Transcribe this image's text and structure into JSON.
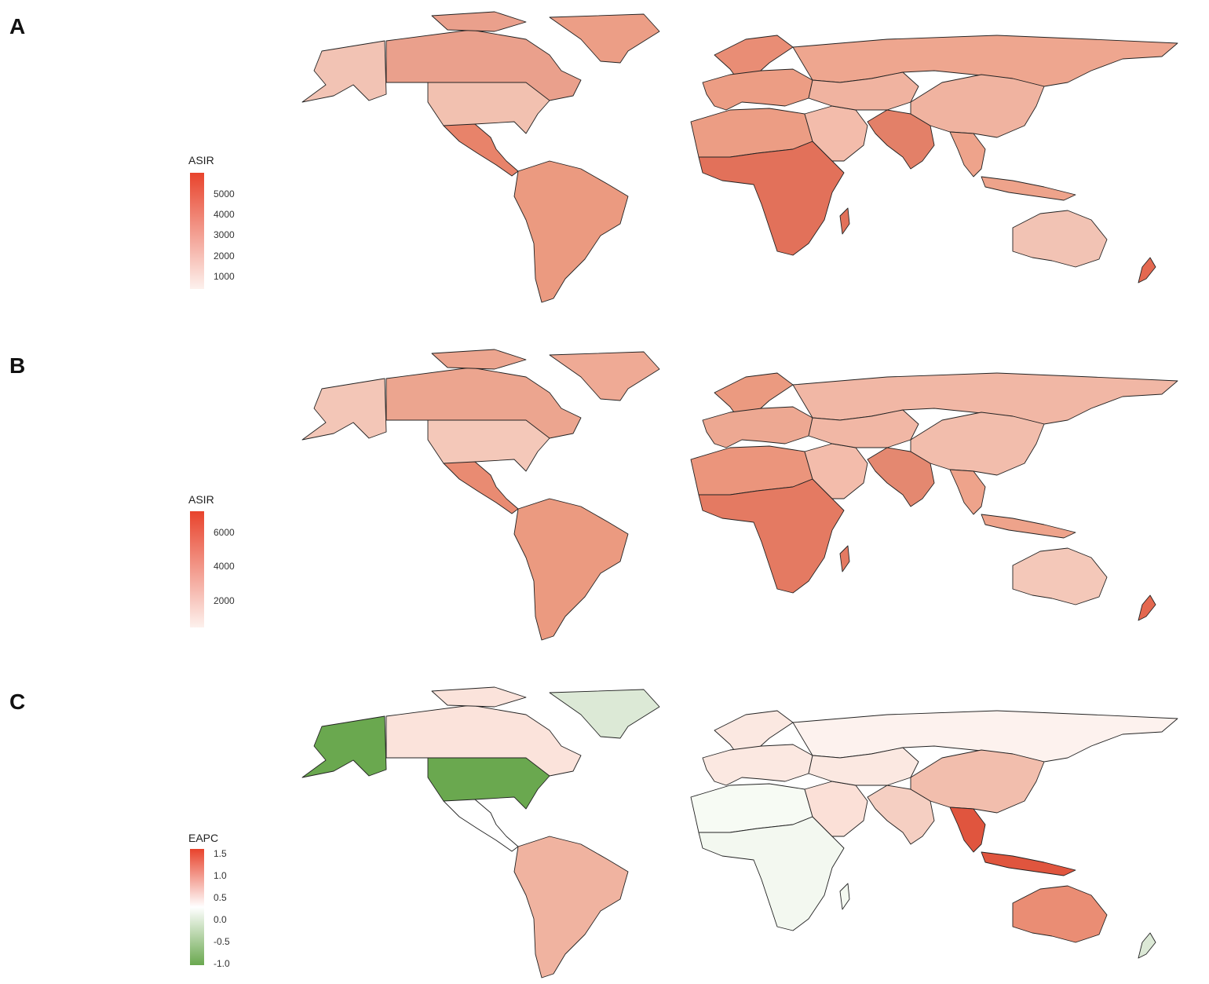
{
  "panels": [
    {
      "letter": "A",
      "legend": {
        "title": "ASIR",
        "ticks": [
          "5000",
          "4000",
          "3000",
          "2000",
          "1000"
        ],
        "gradient": [
          "#e8432c",
          "#fdf1ed"
        ]
      },
      "colors": {
        "north_america_north": "#eaa08c",
        "alaska": "#f2c3b4",
        "greenland": "#ec9e86",
        "usa": "#f2c1b0",
        "mexico_central": "#e8836a",
        "south_america": "#eb9a80",
        "north_africa": "#ec9d84",
        "sub_saharan_africa": "#e2715a",
        "europe": "#ec9d84",
        "russia": "#eea68f",
        "middle_east": "#f3bcab",
        "central_asia": "#f0b3a0",
        "south_asia": "#e38068",
        "china": "#f0b3a0",
        "southeast_asia": "#eea38b",
        "australia": "#f2c3b4",
        "new_zealand": "#e46850",
        "iceland_scandinavia": "#e98d75"
      }
    },
    {
      "letter": "B",
      "legend": {
        "title": "ASIR",
        "ticks": [
          "6000",
          "4000",
          "2000"
        ],
        "gradient": [
          "#e8432c",
          "#fdf1ed"
        ]
      },
      "colors": {
        "north_america_north": "#eca58f",
        "alaska": "#f3c6b7",
        "greenland": "#efaa95",
        "usa": "#f4c8b9",
        "mexico_central": "#e98b72",
        "south_america": "#eb9a80",
        "north_africa": "#eb957c",
        "sub_saharan_africa": "#e47a62",
        "europe": "#eda892",
        "russia": "#f1b7a5",
        "middle_east": "#f3bcab",
        "central_asia": "#f1b7a5",
        "south_asia": "#e48870",
        "china": "#f2bdac",
        "southeast_asia": "#eea38b",
        "australia": "#f4c8b9",
        "new_zealand": "#e46850",
        "iceland_scandinavia": "#eb9a80"
      }
    },
    {
      "letter": "C",
      "legend": {
        "title": "EAPC",
        "ticks": [
          "1.5",
          "1.0",
          "0.5",
          "0.0",
          "-0.5",
          "-1.0"
        ],
        "gradient": [
          "#e8432c",
          "#ffffff",
          "#6aa84f"
        ]
      },
      "colors": {
        "north_america_north": "#fbe3db",
        "alaska": "#6aa84f",
        "greenland": "#dce9d6",
        "usa": "#6aa84f",
        "mexico_central": "#ffffff",
        "south_america": "#f0b3a0",
        "north_africa": "#f7fbf4",
        "sub_saharan_africa": "#f3f8f0",
        "europe": "#fbe8e1",
        "russia": "#fdf2ee",
        "middle_east": "#fbe0d7",
        "central_asia": "#fbe8e1",
        "south_asia": "#f5cfc2",
        "china": "#f2bead",
        "southeast_asia": "#e0553e",
        "australia": "#ea8d74",
        "new_zealand": "#dce9d6",
        "iceland_scandinavia": "#fbe8e1"
      }
    }
  ]
}
